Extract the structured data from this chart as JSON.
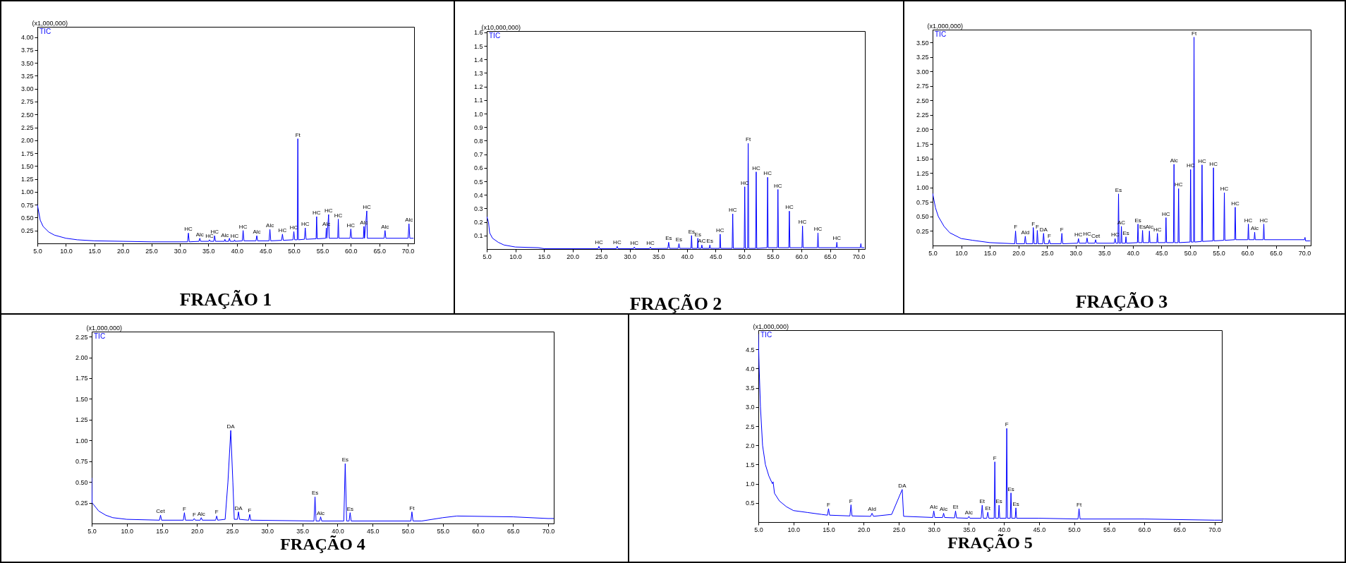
{
  "chart_data": [
    {
      "type": "line",
      "title": "FRAÇÃO 1",
      "ylabel": "(x1,000,000)",
      "xlim": [
        5,
        71.1
      ],
      "ylim": [
        0,
        4.2
      ],
      "xticks": [
        {
          "value": 5,
          "label": "5.0"
        },
        {
          "value": 10,
          "label": "10.0"
        },
        {
          "value": 15,
          "label": "15.0"
        },
        {
          "value": 20,
          "label": "20.0"
        },
        {
          "value": 25,
          "label": "25.0"
        },
        {
          "value": 30,
          "label": "30.0"
        },
        {
          "value": 35,
          "label": "35.0"
        },
        {
          "value": 40,
          "label": "40.0"
        },
        {
          "value": 45,
          "label": "45.0"
        },
        {
          "value": 50,
          "label": "50.0"
        },
        {
          "value": 55,
          "label": "55.0"
        },
        {
          "value": 60,
          "label": "60.0"
        },
        {
          "value": 65,
          "label": "65.0"
        },
        {
          "value": 70,
          "label": "70.0"
        }
      ],
      "yticks": [
        0.25,
        {
          "value": 0.5,
          "label": "0.50"
        },
        0.75,
        {
          "value": 1,
          "label": "1.00"
        },
        1.25,
        {
          "value": 1.5,
          "label": "1.50"
        },
        1.75,
        {
          "value": 2,
          "label": "2.00"
        },
        2.25,
        {
          "value": 2.5,
          "label": "2.50"
        },
        2.75,
        {
          "value": 3,
          "label": "3.00"
        },
        3.25,
        {
          "value": 3.5,
          "label": "3.50"
        },
        3.75,
        {
          "value": 4,
          "label": "4.00"
        }
      ],
      "series": [
        {
          "name": "TIC",
          "color": "#0000ff",
          "x": [
            5,
            5.5,
            6,
            7,
            8,
            10,
            12,
            15,
            20,
            25,
            30,
            31.35,
            31.5,
            31.65,
            33.35,
            33.5,
            33.65,
            35.05,
            35.2,
            35.35,
            35.95,
            36.1,
            36.25,
            37.8,
            37.9,
            38,
            38.55,
            38.7,
            38.85,
            39.5,
            39.6,
            39.7,
            40.95,
            41.1,
            41.25,
            43.35,
            43.5,
            43.65,
            45.65,
            45.8,
            45.95,
            47.85,
            48,
            48.15,
            49.85,
            50,
            50.15,
            50.6,
            50.7,
            50.8,
            51.85,
            52,
            52.15,
            53.9,
            54,
            54.1,
            55.6,
            55.7,
            55.8,
            56.1,
            56.2,
            57.7,
            57.8,
            57.9,
            59.85,
            60,
            60.15,
            62.2,
            62.3,
            62.4,
            62.8,
            62.9,
            65.85,
            66,
            66.15,
            70.05,
            70.2,
            70.35,
            71
          ],
          "values": [
            0.75,
            0.45,
            0.33,
            0.22,
            0.16,
            0.1,
            0.07,
            0.05,
            0.04,
            0.03,
            0.03,
            0.03,
            0.2,
            0.03,
            0.04,
            0.1,
            0.04,
            0.04,
            0.07,
            0.04,
            0.04,
            0.15,
            0.04,
            0.04,
            0.08,
            0.04,
            0.04,
            0.1,
            0.04,
            0.04,
            0.07,
            0.04,
            0.05,
            0.25,
            0.05,
            0.05,
            0.15,
            0.05,
            0.05,
            0.27,
            0.05,
            0.06,
            0.18,
            0.06,
            0.07,
            0.23,
            0.07,
            0.07,
            2.03,
            0.07,
            0.08,
            0.3,
            0.08,
            0.09,
            0.52,
            0.09,
            0.1,
            0.3,
            0.1,
            0.56,
            0.1,
            0.1,
            0.47,
            0.1,
            0.1,
            0.28,
            0.1,
            0.1,
            0.33,
            0.1,
            0.63,
            0.1,
            0.1,
            0.25,
            0.1,
            0.1,
            0.38,
            0.1,
            0.1
          ]
        }
      ],
      "annotations": [
        {
          "text": "HC",
          "x": 31.5,
          "y": 0.2
        },
        {
          "text": "Alc",
          "x": 33.5,
          "y": 0.1
        },
        {
          "text": "HC",
          "x": 35.2,
          "y": 0.07
        },
        {
          "text": "HC",
          "x": 36.1,
          "y": 0.15
        },
        {
          "text": "Alc",
          "x": 37.9,
          "y": 0.08
        },
        {
          "text": "HC",
          "x": 39.6,
          "y": 0.07
        },
        {
          "text": "HC",
          "x": 41.1,
          "y": 0.25
        },
        {
          "text": "Alc",
          "x": 43.5,
          "y": 0.15
        },
        {
          "text": "Alc",
          "x": 45.8,
          "y": 0.27
        },
        {
          "text": "HC",
          "x": 48,
          "y": 0.18
        },
        {
          "text": "HC",
          "x": 50,
          "y": 0.23
        },
        {
          "text": "Ft",
          "x": 50.7,
          "y": 2.03
        },
        {
          "text": "HC",
          "x": 52,
          "y": 0.3
        },
        {
          "text": "HC",
          "x": 54,
          "y": 0.52
        },
        {
          "text": "Alc",
          "x": 55.7,
          "y": 0.3
        },
        {
          "text": "HC",
          "x": 56.1,
          "y": 0.56
        },
        {
          "text": "HC",
          "x": 57.8,
          "y": 0.47
        },
        {
          "text": "HC",
          "x": 60,
          "y": 0.28
        },
        {
          "text": "Alc",
          "x": 62.3,
          "y": 0.33
        },
        {
          "text": "HC",
          "x": 62.8,
          "y": 0.63
        },
        {
          "text": "Alc",
          "x": 66,
          "y": 0.25
        },
        {
          "text": "Alc",
          "x": 70.2,
          "y": 0.38
        }
      ]
    },
    {
      "type": "line",
      "title": "FRAÇÃO 2",
      "ylabel": "(x10,000,000)",
      "xlim": [
        5,
        71.1
      ],
      "ylim": [
        0,
        1.61
      ],
      "xticks": [
        {
          "value": 5,
          "label": "5.0"
        },
        {
          "value": 10,
          "label": "10.0"
        },
        {
          "value": 15,
          "label": "15.0"
        },
        {
          "value": 20,
          "label": "20.0"
        },
        {
          "value": 25,
          "label": "25.0"
        },
        {
          "value": 30,
          "label": "30.0"
        },
        {
          "value": 35,
          "label": "35.0"
        },
        {
          "value": 40,
          "label": "40.0"
        },
        {
          "value": 45,
          "label": "45.0"
        },
        {
          "value": 50,
          "label": "50.0"
        },
        {
          "value": 55,
          "label": "55.0"
        },
        {
          "value": 60,
          "label": "60.0"
        },
        {
          "value": 65,
          "label": "65.0"
        },
        {
          "value": 70,
          "label": "70.0"
        }
      ],
      "yticks": [
        0.1,
        0.2,
        0.3,
        0.4,
        0.5,
        0.6,
        0.7,
        0.8,
        0.9,
        {
          "value": 1,
          "label": "1.0"
        },
        1.1,
        1.2,
        1.3,
        1.4,
        1.5,
        1.6
      ],
      "series": [
        {
          "name": "TIC",
          "color": "#0000ff",
          "x": [
            5,
            5.3,
            5.5,
            6,
            7,
            8,
            10,
            14,
            15,
            24.45,
            24.6,
            24.75,
            27.65,
            27.8,
            27.95,
            30.65,
            30.8,
            30.95,
            33.45,
            33.6,
            33.75,
            36.65,
            36.8,
            36.95,
            38.45,
            38.6,
            38.75,
            40.7,
            40.8,
            40.9,
            41.8,
            41.9,
            42,
            42.5,
            42.6,
            42.7,
            43.9,
            44,
            44.1,
            45.7,
            45.8,
            45.9,
            47.9,
            48,
            48.1,
            50,
            50.1,
            50.2,
            50.6,
            50.7,
            50.8,
            52,
            52.1,
            52.2,
            54,
            54.1,
            54.2,
            55.8,
            55.9,
            56,
            57.8,
            57.9,
            58,
            60.1,
            60.2,
            60.3,
            62.8,
            62.9,
            63,
            66.1,
            66.2,
            66.3,
            70.3,
            70.4,
            70.5,
            71
          ],
          "values": [
            0.24,
            0.2,
            0.12,
            0.08,
            0.05,
            0.03,
            0.015,
            0.01,
            0.003,
            0.003,
            0.02,
            0.003,
            0.003,
            0.02,
            0.003,
            0.003,
            0.015,
            0.003,
            0.003,
            0.015,
            0.003,
            0.005,
            0.05,
            0.005,
            0.005,
            0.04,
            0.005,
            0.005,
            0.1,
            0.005,
            0.005,
            0.08,
            0.005,
            0.005,
            0.03,
            0.005,
            0.005,
            0.03,
            0.005,
            0.005,
            0.11,
            0.005,
            0.005,
            0.26,
            0.005,
            0.005,
            0.46,
            0.005,
            0.005,
            0.78,
            0.005,
            0.005,
            0.57,
            0.005,
            0.01,
            0.53,
            0.01,
            0.01,
            0.44,
            0.01,
            0.01,
            0.28,
            0.01,
            0.01,
            0.17,
            0.01,
            0.01,
            0.12,
            0.01,
            0.01,
            0.05,
            0.01,
            0.01,
            0.04,
            0.01,
            0.01
          ]
        }
      ],
      "annotations": [
        {
          "text": "HC",
          "x": 24.6,
          "y": 0.02
        },
        {
          "text": "HC",
          "x": 27.8,
          "y": 0.02
        },
        {
          "text": "HC",
          "x": 30.8,
          "y": 0.015
        },
        {
          "text": "HC",
          "x": 33.6,
          "y": 0.015
        },
        {
          "text": "Es",
          "x": 36.8,
          "y": 0.05
        },
        {
          "text": "Es",
          "x": 38.6,
          "y": 0.04
        },
        {
          "text": "Es",
          "x": 40.8,
          "y": 0.1
        },
        {
          "text": "Es",
          "x": 41.9,
          "y": 0.08
        },
        {
          "text": "AC",
          "x": 42.6,
          "y": 0.03
        },
        {
          "text": "Es",
          "x": 44,
          "y": 0.03
        },
        {
          "text": "HC",
          "x": 45.8,
          "y": 0.11
        },
        {
          "text": "HC",
          "x": 48,
          "y": 0.26
        },
        {
          "text": "HC",
          "x": 50.1,
          "y": 0.46
        },
        {
          "text": "Ft",
          "x": 50.7,
          "y": 0.78
        },
        {
          "text": "HC",
          "x": 52.1,
          "y": 0.57
        },
        {
          "text": "HC",
          "x": 54.1,
          "y": 0.53
        },
        {
          "text": "HC",
          "x": 55.9,
          "y": 0.44
        },
        {
          "text": "HC",
          "x": 57.9,
          "y": 0.28
        },
        {
          "text": "HC",
          "x": 60.2,
          "y": 0.17
        },
        {
          "text": "HC",
          "x": 62.9,
          "y": 0.12
        },
        {
          "text": "HC",
          "x": 66.2,
          "y": 0.05
        }
      ]
    },
    {
      "type": "line",
      "title": "FRAÇÃO 3",
      "ylabel": "(x1,000,000)",
      "xlim": [
        5,
        71.1
      ],
      "ylim": [
        0,
        3.72
      ],
      "xticks": [
        {
          "value": 5,
          "label": "5.0"
        },
        {
          "value": 10,
          "label": "10.0"
        },
        {
          "value": 15,
          "label": "15.0"
        },
        {
          "value": 20,
          "label": "20.0"
        },
        {
          "value": 25,
          "label": "25.0"
        },
        {
          "value": 30,
          "label": "30.0"
        },
        {
          "value": 35,
          "label": "35.0"
        },
        {
          "value": 40,
          "label": "40.0"
        },
        {
          "value": 45,
          "label": "45.0"
        },
        {
          "value": 50,
          "label": "50.0"
        },
        {
          "value": 55,
          "label": "55.0"
        },
        {
          "value": 60,
          "label": "60.0"
        },
        {
          "value": 65,
          "label": "65.0"
        },
        {
          "value": 70,
          "label": "70.0"
        }
      ],
      "yticks": [
        0.25,
        {
          "value": 0.5,
          "label": "0.50"
        },
        0.75,
        {
          "value": 1,
          "label": "1.00"
        },
        1.25,
        {
          "value": 1.5,
          "label": "1.50"
        },
        1.75,
        {
          "value": 2,
          "label": "2.00"
        },
        2.25,
        {
          "value": 2.5,
          "label": "2.50"
        },
        2.75,
        {
          "value": 3,
          "label": "3.00"
        },
        3.25,
        {
          "value": 3.5,
          "label": "3.50"
        }
      ],
      "series": [
        {
          "name": "TIC",
          "color": "#0000ff",
          "x": [
            5,
            5.5,
            6,
            7,
            8,
            10,
            12,
            15,
            19.35,
            19.5,
            19.65,
            21.05,
            21.2,
            21.35,
            22.5,
            22.6,
            22.75,
            23.2,
            23.3,
            23.45,
            24.25,
            24.4,
            24.55,
            25.25,
            25.4,
            25.55,
            27.45,
            27.6,
            27.75,
            30.35,
            30.5,
            30.65,
            31.85,
            32,
            32.15,
            33.35,
            33.5,
            33.65,
            36.75,
            36.9,
            37.05,
            37.4,
            37.5,
            37.6,
            37.9,
            38,
            38.1,
            38.7,
            38.8,
            38.9,
            40.8,
            40.9,
            41,
            41.6,
            41.7,
            41.8,
            42.8,
            42.9,
            43,
            44.2,
            44.3,
            44.4,
            45.7,
            45.8,
            45.9,
            47.1,
            47.2,
            47.3,
            47.9,
            48,
            48.1,
            50,
            50.1,
            50.2,
            50.6,
            50.7,
            50.8,
            52,
            52.1,
            52.2,
            54,
            54.1,
            54.2,
            55.9,
            56,
            56.1,
            57.8,
            57.9,
            58,
            60.1,
            60.2,
            60.3,
            61.2,
            61.3,
            61.4,
            62.8,
            62.9,
            63,
            70,
            70.1,
            70.2,
            71
          ],
          "values": [
            0.9,
            0.65,
            0.5,
            0.33,
            0.22,
            0.12,
            0.09,
            0.05,
            0.03,
            0.25,
            0.03,
            0.03,
            0.16,
            0.03,
            0.03,
            0.31,
            0.03,
            0.03,
            0.26,
            0.03,
            0.03,
            0.21,
            0.03,
            0.03,
            0.1,
            0.03,
            0.03,
            0.21,
            0.03,
            0.04,
            0.12,
            0.04,
            0.04,
            0.13,
            0.04,
            0.04,
            0.1,
            0.04,
            0.04,
            0.12,
            0.04,
            0.04,
            0.89,
            0.04,
            0.04,
            0.33,
            0.04,
            0.04,
            0.15,
            0.04,
            0.05,
            0.37,
            0.05,
            0.05,
            0.26,
            0.05,
            0.05,
            0.25,
            0.05,
            0.05,
            0.21,
            0.05,
            0.05,
            0.48,
            0.05,
            0.05,
            1.4,
            0.05,
            0.05,
            0.98,
            0.05,
            0.06,
            1.31,
            0.06,
            0.06,
            3.59,
            0.06,
            0.07,
            1.39,
            0.07,
            0.08,
            1.34,
            0.08,
            0.09,
            0.91,
            0.09,
            0.1,
            0.66,
            0.1,
            0.1,
            0.37,
            0.1,
            0.1,
            0.23,
            0.1,
            0.1,
            0.37,
            0.1,
            0.1,
            0.14,
            0.08,
            0.08
          ]
        }
      ],
      "annotations": [
        {
          "text": "F",
          "x": 19.5,
          "y": 0.25
        },
        {
          "text": "Ald",
          "x": 21.2,
          "y": 0.16
        },
        {
          "text": "F",
          "x": 22.6,
          "y": 0.31
        },
        {
          "text": "F",
          "x": 23.3,
          "y": 0.26
        },
        {
          "text": "DA",
          "x": 24.4,
          "y": 0.21
        },
        {
          "text": "F",
          "x": 25.4,
          "y": 0.1
        },
        {
          "text": "F",
          "x": 27.6,
          "y": 0.21
        },
        {
          "text": "HC",
          "x": 30.5,
          "y": 0.12
        },
        {
          "text": "HC",
          "x": 32,
          "y": 0.13
        },
        {
          "text": "Cet",
          "x": 33.5,
          "y": 0.1
        },
        {
          "text": "HC",
          "x": 36.9,
          "y": 0.12
        },
        {
          "text": "Es",
          "x": 37.5,
          "y": 0.89
        },
        {
          "text": "AC",
          "x": 38,
          "y": 0.33
        },
        {
          "text": "Es",
          "x": 38.8,
          "y": 0.15
        },
        {
          "text": "Es",
          "x": 40.9,
          "y": 0.37
        },
        {
          "text": "Es",
          "x": 41.7,
          "y": 0.26
        },
        {
          "text": "Alc",
          "x": 42.9,
          "y": 0.25
        },
        {
          "text": "HC",
          "x": 44.3,
          "y": 0.21
        },
        {
          "text": "HC",
          "x": 45.8,
          "y": 0.48
        },
        {
          "text": "Alc",
          "x": 47.2,
          "y": 1.4
        },
        {
          "text": "HC",
          "x": 48,
          "y": 0.98
        },
        {
          "text": "HC",
          "x": 50.1,
          "y": 1.31
        },
        {
          "text": "Ft",
          "x": 50.7,
          "y": 3.59
        },
        {
          "text": "HC",
          "x": 52.1,
          "y": 1.39
        },
        {
          "text": "HC",
          "x": 54.1,
          "y": 1.34
        },
        {
          "text": "HC",
          "x": 56,
          "y": 0.91
        },
        {
          "text": "HC",
          "x": 57.9,
          "y": 0.66
        },
        {
          "text": "HC",
          "x": 60.2,
          "y": 0.37
        },
        {
          "text": "Alc",
          "x": 61.3,
          "y": 0.23
        },
        {
          "text": "HC",
          "x": 62.9,
          "y": 0.37
        }
      ]
    },
    {
      "type": "line",
      "title": "FRAÇÃO 4",
      "ylabel": "(x1,000,000)",
      "xlim": [
        5,
        70.8
      ],
      "ylim": [
        0,
        2.31
      ],
      "xticks": [
        {
          "value": 5,
          "label": "5.0"
        },
        {
          "value": 10,
          "label": "10.0"
        },
        {
          "value": 15,
          "label": "15.0"
        },
        {
          "value": 20,
          "label": "20.0"
        },
        {
          "value": 25,
          "label": "25.0"
        },
        {
          "value": 30,
          "label": "30.0"
        },
        {
          "value": 35,
          "label": "35.0"
        },
        {
          "value": 40,
          "label": "40.0"
        },
        {
          "value": 45,
          "label": "45.0"
        },
        {
          "value": 50,
          "label": "50.0"
        },
        {
          "value": 55,
          "label": "55.0"
        },
        {
          "value": 60,
          "label": "60.0"
        },
        {
          "value": 65,
          "label": "65.0"
        },
        {
          "value": 70,
          "label": "70.0"
        }
      ],
      "yticks": [
        0.25,
        {
          "value": 0.5,
          "label": "0.50"
        },
        0.75,
        {
          "value": 1,
          "label": "1.00"
        },
        1.25,
        {
          "value": 1.5,
          "label": "1.50"
        },
        1.75,
        {
          "value": 2,
          "label": "2.00"
        },
        2.25
      ],
      "series": [
        {
          "name": "TIC",
          "color": "#0000ff",
          "x": [
            5,
            5.05,
            6,
            7,
            8,
            10,
            14.65,
            14.8,
            14.95,
            18.05,
            18.2,
            18.35,
            19.45,
            19.6,
            19.75,
            20.45,
            20.6,
            20.75,
            22.65,
            22.8,
            22.95,
            24,
            24.4,
            24.8,
            25.1,
            25.3,
            25.75,
            25.9,
            26.05,
            27.35,
            27.5,
            27.65,
            36.65,
            36.8,
            36.95,
            37.45,
            37.6,
            37.75,
            40.9,
            41.1,
            41.3,
            41.65,
            41.8,
            41.95,
            50.45,
            50.6,
            50.75,
            52,
            55,
            57,
            65,
            70,
            70.8
          ],
          "values": [
            0.55,
            0.25,
            0.15,
            0.1,
            0.07,
            0.05,
            0.04,
            0.1,
            0.04,
            0.04,
            0.13,
            0.04,
            0.04,
            0.06,
            0.04,
            0.04,
            0.07,
            0.04,
            0.04,
            0.09,
            0.04,
            0.05,
            0.5,
            1.12,
            0.5,
            0.05,
            0.05,
            0.14,
            0.05,
            0.04,
            0.11,
            0.04,
            0.03,
            0.32,
            0.03,
            0.03,
            0.08,
            0.03,
            0.03,
            0.72,
            0.03,
            0.03,
            0.13,
            0.03,
            0.03,
            0.14,
            0.03,
            0.03,
            0.07,
            0.09,
            0.08,
            0.06,
            0.06
          ]
        }
      ],
      "annotations": [
        {
          "text": "Cet",
          "x": 14.8,
          "y": 0.1
        },
        {
          "text": "F",
          "x": 18.2,
          "y": 0.13
        },
        {
          "text": "F",
          "x": 19.6,
          "y": 0.06
        },
        {
          "text": "Alc",
          "x": 20.6,
          "y": 0.07
        },
        {
          "text": "F",
          "x": 22.8,
          "y": 0.09
        },
        {
          "text": "DA",
          "x": 24.8,
          "y": 1.12
        },
        {
          "text": "DA",
          "x": 25.9,
          "y": 0.14
        },
        {
          "text": "F",
          "x": 27.5,
          "y": 0.11
        },
        {
          "text": "Es",
          "x": 36.8,
          "y": 0.32
        },
        {
          "text": "Alc",
          "x": 37.6,
          "y": 0.08
        },
        {
          "text": "Es",
          "x": 41.1,
          "y": 0.72
        },
        {
          "text": "Es",
          "x": 41.8,
          "y": 0.13
        },
        {
          "text": "Ft",
          "x": 50.6,
          "y": 0.14
        }
      ]
    },
    {
      "type": "line",
      "title": "FRAÇÃO 5",
      "ylabel": "(x1,000,000)",
      "xlim": [
        5,
        71.05
      ],
      "ylim": [
        0,
        5
      ],
      "xticks": [
        {
          "value": 5,
          "label": "5.0"
        },
        {
          "value": 10,
          "label": "10.0"
        },
        {
          "value": 15,
          "label": "15.0"
        },
        {
          "value": 20,
          "label": "20.0"
        },
        {
          "value": 25,
          "label": "25.0"
        },
        {
          "value": 30,
          "label": "30.0"
        },
        {
          "value": 35,
          "label": "35.0"
        },
        {
          "value": 40,
          "label": "40.0"
        },
        {
          "value": 45,
          "label": "45.0"
        },
        {
          "value": 50,
          "label": "50.0"
        },
        {
          "value": 55,
          "label": "55.0"
        },
        {
          "value": 60,
          "label": "60.0"
        },
        {
          "value": 65,
          "label": "65.0"
        },
        {
          "value": 70,
          "label": "70.0"
        }
      ],
      "yticks": [
        0.5,
        {
          "value": 1,
          "label": "1.0"
        },
        1.5,
        {
          "value": 2,
          "label": "2.0"
        },
        2.5,
        {
          "value": 3,
          "label": "3.0"
        },
        3.5,
        {
          "value": 4,
          "label": "4.0"
        },
        4.5
      ],
      "series": [
        {
          "name": "TIC",
          "color": "#0000ff",
          "x": [
            5,
            5.1,
            5.3,
            5.6,
            6,
            6.5,
            7,
            7.1,
            7.3,
            8,
            9,
            10,
            12,
            14,
            14.85,
            15,
            15.15,
            18.05,
            18.2,
            18.35,
            21,
            21.2,
            21.4,
            24,
            25.5,
            25.7,
            29.85,
            30,
            30.15,
            31.25,
            31.4,
            31.55,
            32.95,
            33.1,
            33.25,
            34.85,
            35,
            35.15,
            36.75,
            36.9,
            37.05,
            37.55,
            37.7,
            37.85,
            38.6,
            38.7,
            38.8,
            39.2,
            39.3,
            39.4,
            40.3,
            40.4,
            40.5,
            40.9,
            41,
            41.1,
            41.6,
            41.7,
            41.8,
            45,
            50.55,
            50.7,
            50.85,
            60,
            70,
            71
          ],
          "values": [
            4.9,
            4.1,
            3,
            2,
            1.5,
            1.2,
            1,
            1.05,
            0.75,
            0.55,
            0.4,
            0.3,
            0.25,
            0.2,
            0.18,
            0.35,
            0.18,
            0.16,
            0.45,
            0.16,
            0.15,
            0.23,
            0.15,
            0.2,
            0.85,
            0.15,
            0.12,
            0.29,
            0.12,
            0.12,
            0.23,
            0.12,
            0.11,
            0.29,
            0.11,
            0.1,
            0.15,
            0.1,
            0.1,
            0.44,
            0.1,
            0.1,
            0.26,
            0.1,
            0.1,
            1.57,
            0.1,
            0.1,
            0.44,
            0.1,
            0.1,
            2.44,
            0.1,
            0.1,
            0.76,
            0.1,
            0.1,
            0.37,
            0.1,
            0.1,
            0.08,
            0.35,
            0.08,
            0.08,
            0.05,
            0.05
          ]
        }
      ],
      "annotations": [
        {
          "text": "F",
          "x": 15,
          "y": 0.35
        },
        {
          "text": "F",
          "x": 18.2,
          "y": 0.45
        },
        {
          "text": "Ald",
          "x": 21.2,
          "y": 0.23
        },
        {
          "text": "DA",
          "x": 25.5,
          "y": 0.85
        },
        {
          "text": "Alc",
          "x": 30,
          "y": 0.29
        },
        {
          "text": "Alc",
          "x": 31.4,
          "y": 0.23
        },
        {
          "text": "Et",
          "x": 33.1,
          "y": 0.29
        },
        {
          "text": "Alc",
          "x": 35,
          "y": 0.15
        },
        {
          "text": "Et",
          "x": 36.9,
          "y": 0.44
        },
        {
          "text": "Et",
          "x": 37.7,
          "y": 0.26
        },
        {
          "text": "F",
          "x": 38.7,
          "y": 1.57
        },
        {
          "text": "Es",
          "x": 39.3,
          "y": 0.44
        },
        {
          "text": "F",
          "x": 40.4,
          "y": 2.44
        },
        {
          "text": "Es",
          "x": 41,
          "y": 0.76
        },
        {
          "text": "Es",
          "x": 41.7,
          "y": 0.37
        },
        {
          "text": "Ft",
          "x": 50.7,
          "y": 0.35
        }
      ]
    }
  ]
}
